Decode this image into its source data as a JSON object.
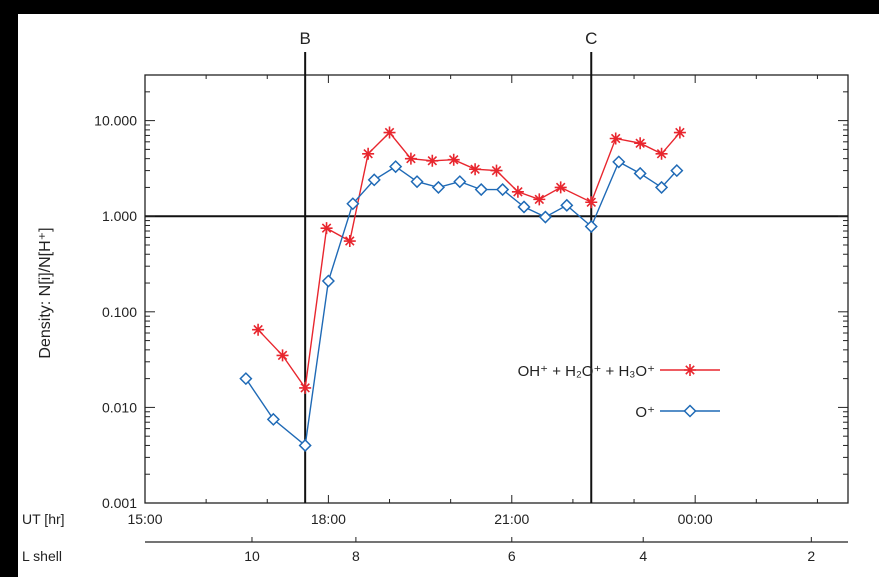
{
  "chart_data": {
    "type": "line",
    "yscale": "log",
    "ylabel": "Density: N[i]/N[H⁺]",
    "ylim": [
      0.001,
      30
    ],
    "y_ticks": [
      {
        "value": 0.001,
        "label": "0.001"
      },
      {
        "value": 0.01,
        "label": "0.010"
      },
      {
        "value": 0.1,
        "label": "0.100"
      },
      {
        "value": 1,
        "label": "1.000"
      },
      {
        "value": 10,
        "label": "10.000"
      }
    ],
    "xlim": [
      15.0,
      26.5
    ],
    "x_axis_label": "UT [hr]",
    "x_ticks": [
      {
        "value": 15,
        "label": "15:00"
      },
      {
        "value": 18,
        "label": "18:00"
      },
      {
        "value": 21,
        "label": "21:00"
      },
      {
        "value": 24,
        "label": "00:00"
      }
    ],
    "lshell_label": "L shell",
    "lshell_ticks": [
      {
        "x": 16.75,
        "label": "10"
      },
      {
        "x": 18.45,
        "label": "8"
      },
      {
        "x": 21.0,
        "label": "6"
      },
      {
        "x": 23.15,
        "label": "4"
      },
      {
        "x": 25.9,
        "label": "2"
      }
    ],
    "vertical_markers": [
      {
        "x": 17.62,
        "label": "B"
      },
      {
        "x": 22.3,
        "label": "C"
      }
    ],
    "reference_line_y": 1.0,
    "series": [
      {
        "name": "OH⁺ + H₂O⁺ + H₃O⁺",
        "color": "#e8262e",
        "marker": "star",
        "x": [
          16.85,
          17.25,
          17.62,
          17.97,
          18.35,
          18.65,
          19.0,
          19.35,
          19.7,
          20.05,
          20.4,
          20.75,
          21.1,
          21.45,
          21.8,
          22.3,
          22.7,
          23.1,
          23.45,
          23.75
        ],
        "y": [
          0.065,
          0.035,
          0.016,
          0.75,
          0.55,
          4.5,
          7.5,
          4.0,
          3.8,
          3.9,
          3.1,
          3.0,
          1.8,
          1.5,
          2.0,
          1.4,
          6.5,
          5.8,
          4.5,
          7.5
        ]
      },
      {
        "name": "O⁺",
        "color": "#1f6ab6",
        "marker": "diamond",
        "x": [
          16.65,
          17.1,
          17.62,
          18.0,
          18.4,
          18.75,
          19.1,
          19.45,
          19.8,
          20.15,
          20.5,
          20.85,
          21.2,
          21.55,
          21.9,
          22.3,
          22.75,
          23.1,
          23.45,
          23.7
        ],
        "y": [
          0.02,
          0.0075,
          0.004,
          0.21,
          1.35,
          2.4,
          3.3,
          2.3,
          2.0,
          2.3,
          1.9,
          1.9,
          1.25,
          0.98,
          1.3,
          0.78,
          3.7,
          2.8,
          2.0,
          3.0
        ]
      }
    ],
    "legend_placement": "center-right"
  }
}
